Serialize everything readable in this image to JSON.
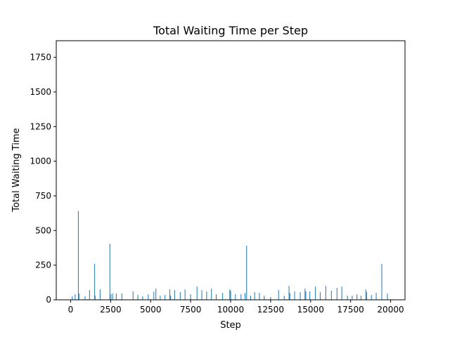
{
  "chart_data": {
    "type": "bar",
    "title": "Total Waiting Time per Step",
    "xlabel": "Step",
    "ylabel": "Total Waiting Time",
    "xlim": [
      -900,
      20900
    ],
    "ylim": [
      0,
      1870
    ],
    "xticks": [
      0,
      2500,
      5000,
      7500,
      10000,
      12500,
      15000,
      17500,
      20000
    ],
    "yticks": [
      0,
      250,
      500,
      750,
      1000,
      1250,
      1500,
      1750
    ],
    "grid": false,
    "bar_color": "#1f77b4",
    "series": [
      {
        "x": [
          100,
          280,
          480,
          520,
          900,
          1180,
          1500,
          1530,
          1840,
          2450,
          2520,
          2620,
          2850,
          3200,
          3900,
          4200,
          4500,
          4850,
          5200,
          5330,
          5600,
          5900,
          6200,
          6250,
          6500,
          6850,
          7150,
          7500,
          7900,
          8200,
          8500,
          8800,
          9100,
          9500,
          9950,
          10000,
          10300,
          10650,
          10900,
          11000,
          11250,
          11500,
          11800,
          12100,
          12500,
          13000,
          13350,
          13650,
          13700,
          14000,
          14350,
          14650,
          14700,
          14950,
          15300,
          15600,
          15950,
          16300,
          16650,
          16950,
          17300,
          17600,
          17900,
          18150,
          18450,
          18500,
          18800,
          19100,
          19450,
          19800
        ],
        "values": [
          25,
          40,
          640,
          45,
          25,
          70,
          260,
          30,
          75,
          405,
          40,
          45,
          45,
          45,
          60,
          35,
          25,
          40,
          60,
          80,
          30,
          35,
          75,
          30,
          70,
          55,
          75,
          40,
          95,
          70,
          60,
          80,
          40,
          50,
          75,
          65,
          40,
          40,
          50,
          390,
          30,
          55,
          50,
          30,
          20,
          70,
          30,
          100,
          50,
          60,
          55,
          80,
          60,
          60,
          95,
          55,
          100,
          65,
          85,
          95,
          30,
          30,
          40,
          30,
          75,
          55,
          35,
          50,
          260,
          45
        ]
      }
    ]
  }
}
